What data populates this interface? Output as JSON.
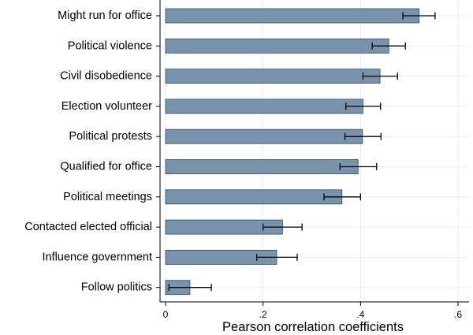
{
  "chart_data": {
    "type": "bar",
    "orientation": "horizontal",
    "categories": [
      "Might run for office",
      "Political violence",
      "Civil disobedience",
      "Election volunteer",
      "Political protests",
      "Qualified for office",
      "Political meetings",
      "Contacted elected official",
      "Influence government",
      "Follow politics"
    ],
    "values": [
      0.52,
      0.458,
      0.44,
      0.405,
      0.404,
      0.395,
      0.362,
      0.24,
      0.228,
      0.05
    ],
    "ci_low": [
      0.487,
      0.424,
      0.405,
      0.37,
      0.368,
      0.358,
      0.325,
      0.2,
      0.187,
      0.007
    ],
    "ci_high": [
      0.553,
      0.492,
      0.476,
      0.441,
      0.442,
      0.433,
      0.4,
      0.28,
      0.27,
      0.094
    ],
    "xlabel": "Pearson correlation coefficients",
    "ylabel": "",
    "xlim": [
      0,
      0.6
    ],
    "xticks": [
      0,
      0.2,
      0.4,
      0.6
    ],
    "xtick_labels": [
      "0",
      ".2",
      ".4",
      ".6"
    ],
    "grid": "vertical and horizontal light gridlines",
    "bar_color": "#7a93ad",
    "bar_edge_color": "#2f4a66",
    "errorbar_color": "#000000"
  }
}
